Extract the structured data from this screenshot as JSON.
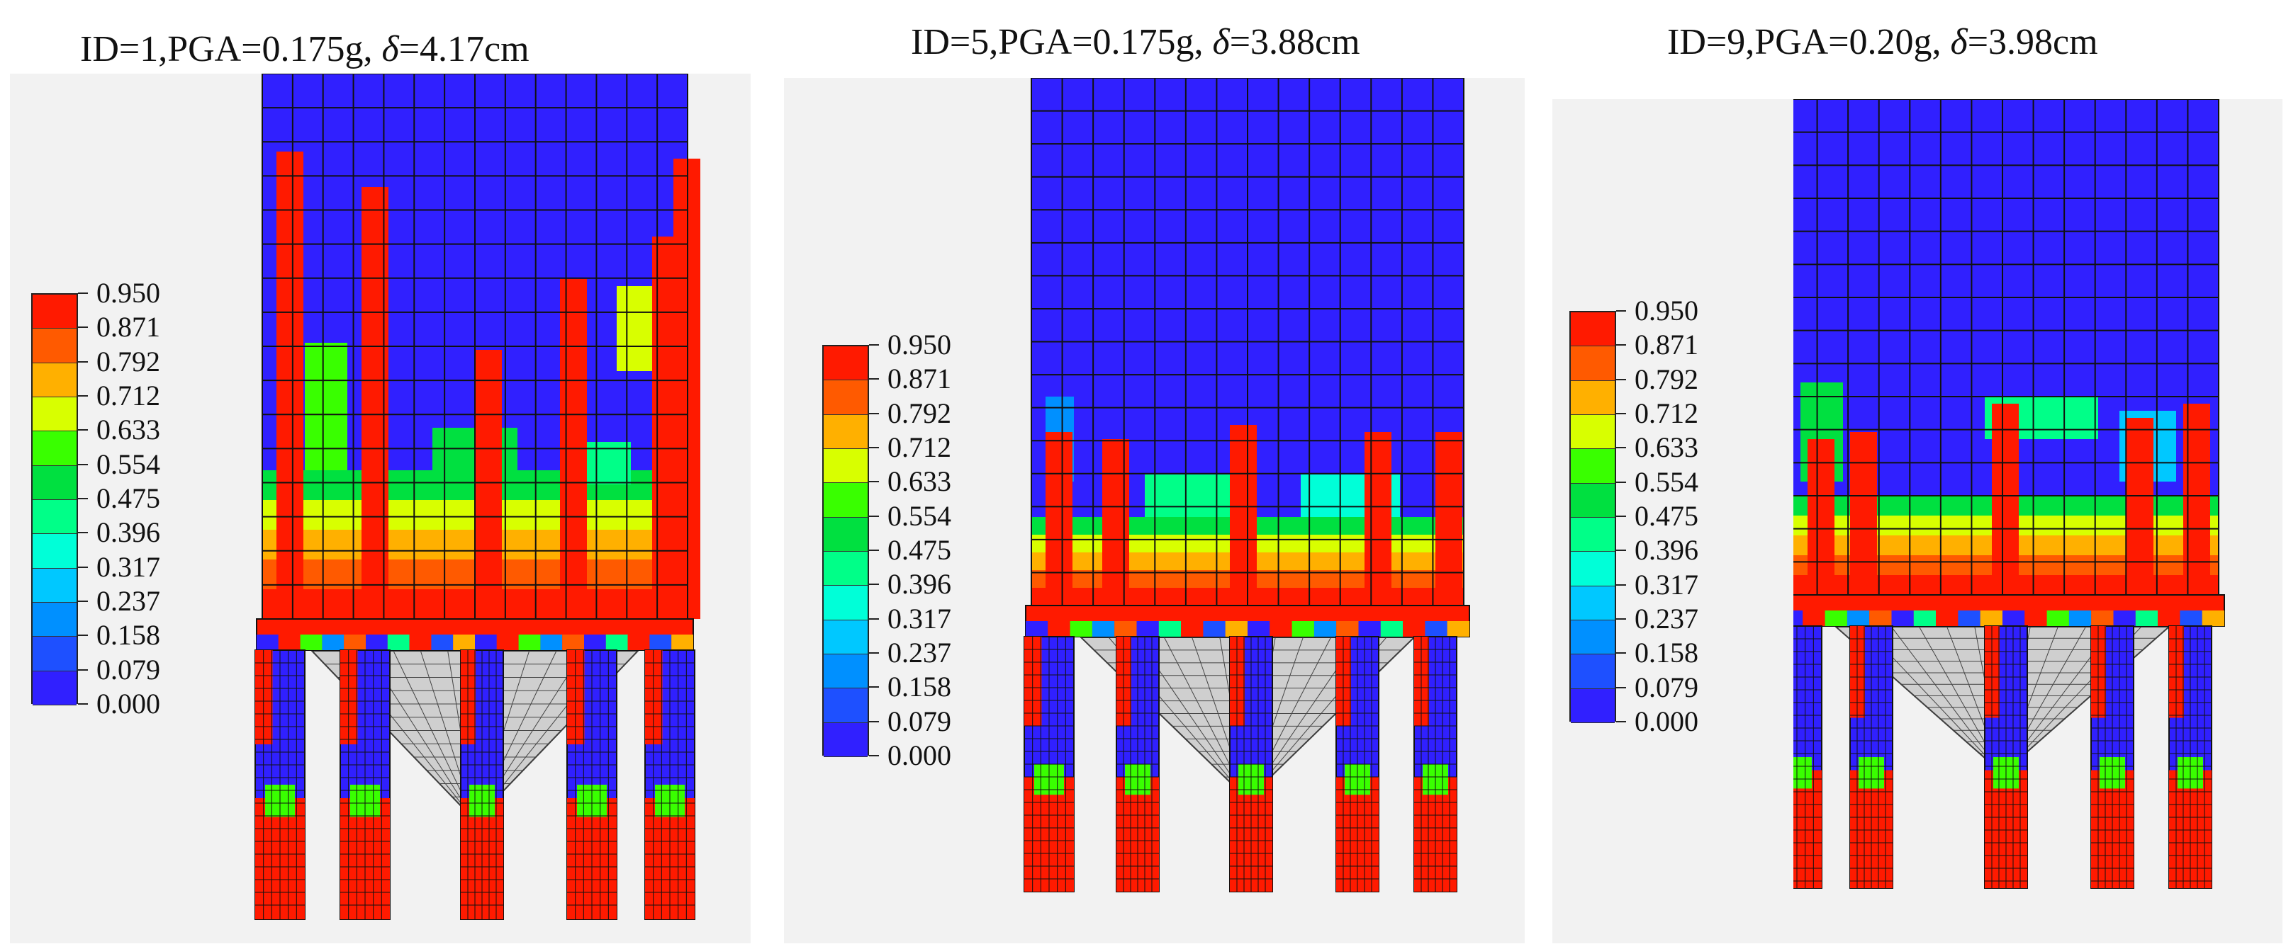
{
  "panels": [
    {
      "title_prefix": "ID=1,PGA=0.175g, ",
      "delta_symbol": "δ",
      "title_suffix": "=4.17cm"
    },
    {
      "title_prefix": "ID=5,PGA=0.175g, ",
      "delta_symbol": "δ",
      "title_suffix": "=3.88cm"
    },
    {
      "title_prefix": "ID=9,PGA=0.20g, ",
      "delta_symbol": "δ",
      "title_suffix": "=3.98cm"
    }
  ],
  "legend": {
    "labels": [
      "0.950",
      "0.871",
      "0.792",
      "0.712",
      "0.633",
      "0.554",
      "0.475",
      "0.396",
      "0.317",
      "0.237",
      "0.158",
      "0.079",
      "0.000"
    ],
    "colors": [
      "#ff1a00",
      "#ff5a00",
      "#ffb000",
      "#d8ff00",
      "#39ff00",
      "#00e040",
      "#00ff88",
      "#00ffd8",
      "#00c8ff",
      "#0090ff",
      "#1e50ff",
      "#3020ff"
    ]
  }
}
